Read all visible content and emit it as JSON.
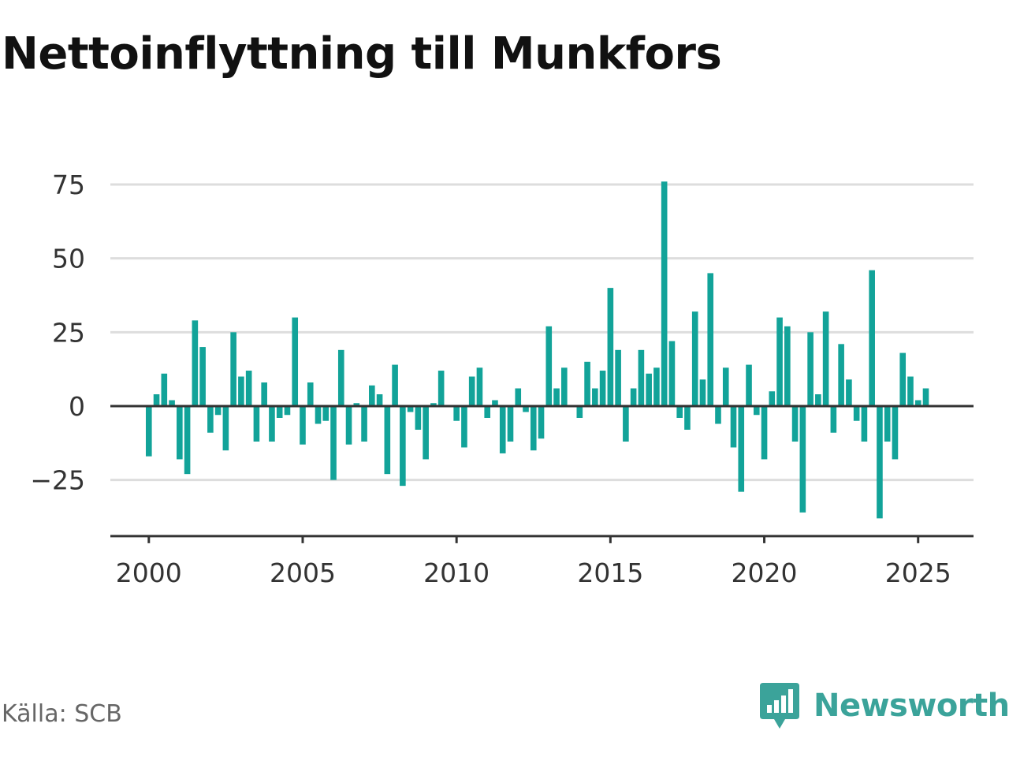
{
  "source": "Källa: SCB",
  "brand": {
    "name": "Newsworthy",
    "icon": "newsworthy-logo-icon",
    "color": "#3ba39a"
  },
  "chart_data": {
    "type": "bar",
    "title": "Nettoinflyttning till Munkfors",
    "xlabel": "",
    "ylabel": "",
    "bar_color": "#12a399",
    "grid": true,
    "legend": "none",
    "xlim": [
      1998.75,
      2026.8
    ],
    "ylim": [
      -44,
      76
    ],
    "x_ticks": [
      {
        "value": 2000,
        "label": "2000"
      },
      {
        "value": 2005,
        "label": "2005"
      },
      {
        "value": 2010,
        "label": "2010"
      },
      {
        "value": 2015,
        "label": "2015"
      },
      {
        "value": 2020,
        "label": "2020"
      },
      {
        "value": 2025,
        "label": "2025"
      }
    ],
    "y_ticks": [
      {
        "value": 75,
        "label": "75"
      },
      {
        "value": 50,
        "label": "50"
      },
      {
        "value": 25,
        "label": "25"
      },
      {
        "value": 0,
        "label": "0"
      },
      {
        "value": -25,
        "label": "−25"
      }
    ],
    "x_start": 2000.0,
    "x_step": 0.25,
    "values": [
      -17,
      4,
      11,
      2,
      -18,
      -23,
      29,
      20,
      -9,
      -3,
      -15,
      25,
      10,
      12,
      -12,
      8,
      -12,
      -4,
      -3,
      30,
      -13,
      8,
      -6,
      -5,
      -25,
      19,
      -13,
      1,
      -12,
      7,
      4,
      -23,
      14,
      -27,
      -2,
      -8,
      -18,
      1,
      12,
      0,
      -5,
      -14,
      10,
      13,
      -4,
      2,
      -16,
      -12,
      6,
      -2,
      -15,
      -11,
      27,
      6,
      13,
      0,
      -4,
      15,
      6,
      12,
      40,
      19,
      -12,
      6,
      19,
      11,
      13,
      76,
      22,
      -4,
      -8,
      32,
      9,
      45,
      -6,
      13,
      -14,
      -29,
      14,
      -3,
      -18,
      5,
      30,
      27,
      -12,
      -36,
      25,
      4,
      32,
      -9,
      21,
      9,
      -5,
      -12,
      46,
      -38,
      -12,
      -18,
      18,
      10,
      2,
      6
    ]
  }
}
